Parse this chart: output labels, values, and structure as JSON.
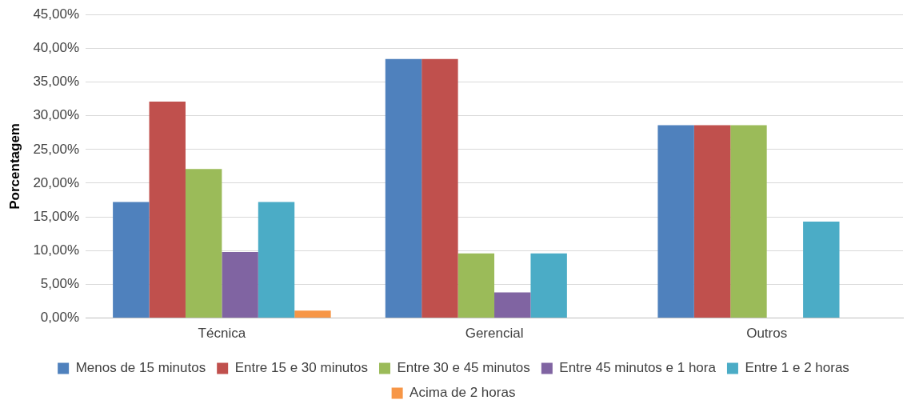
{
  "chart_data": {
    "type": "bar",
    "ylabel": "Porcentagem",
    "categories": [
      "Técnica",
      "Gerencial",
      "Outros"
    ],
    "series": [
      {
        "name": "Menos de 15 minutos",
        "color": "#4f81bd",
        "values": [
          17.2,
          38.4,
          28.6
        ]
      },
      {
        "name": "Entre 15 e 30 minutos",
        "color": "#c0504d",
        "values": [
          32.1,
          38.4,
          28.6
        ]
      },
      {
        "name": "Entre 30 e 45 minutos",
        "color": "#9bbb59",
        "values": [
          22.1,
          9.6,
          28.6
        ]
      },
      {
        "name": "Entre 45 minutos e 1 hora",
        "color": "#8064a2",
        "values": [
          9.8,
          3.8,
          0
        ]
      },
      {
        "name": "Entre 1 e 2 horas",
        "color": "#4bacc6",
        "values": [
          17.2,
          9.6,
          14.3
        ]
      },
      {
        "name": "Acima de 2 horas",
        "color": "#f79646",
        "values": [
          1.1,
          0,
          0
        ]
      }
    ],
    "ylim": [
      0,
      45
    ],
    "yticks": [
      {
        "value": 0,
        "label": "0,00%"
      },
      {
        "value": 5,
        "label": "5,00%"
      },
      {
        "value": 10,
        "label": "10,00%"
      },
      {
        "value": 15,
        "label": "15,00%"
      },
      {
        "value": 20,
        "label": "20,00%"
      },
      {
        "value": 25,
        "label": "25,00%"
      },
      {
        "value": 30,
        "label": "30,00%"
      },
      {
        "value": 35,
        "label": "35,00%"
      },
      {
        "value": 40,
        "label": "40,00%"
      },
      {
        "value": 45,
        "label": "45,00%"
      }
    ],
    "grid": "y",
    "legend": "bottom"
  }
}
